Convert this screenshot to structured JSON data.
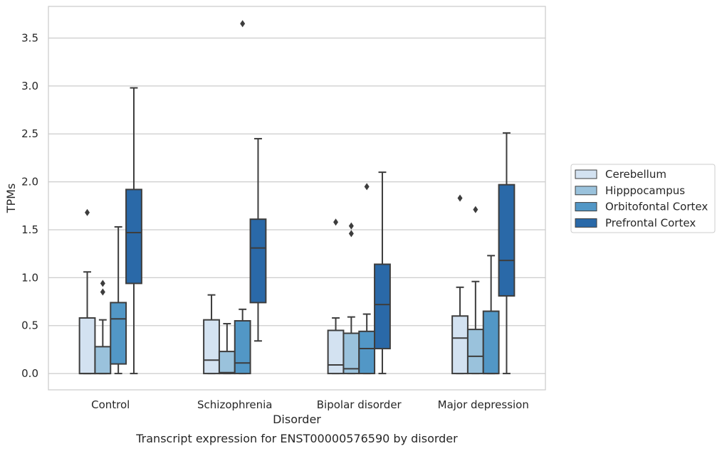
{
  "chart_data": {
    "type": "box",
    "caption": "Transcript expression for ENST00000576590 by disorder",
    "xlabel": "Disorder",
    "ylabel": "TPMs",
    "ylim": [
      -0.17,
      3.83
    ],
    "yticks": [
      "0.0",
      "0.5",
      "1.0",
      "1.5",
      "2.0",
      "2.5",
      "3.0",
      "3.5"
    ],
    "grid": "horizontal",
    "legend_position": "right",
    "categories": [
      "Control",
      "Schizophrenia",
      "Bipolar disorder",
      "Major depression"
    ],
    "series": [
      {
        "name": "Cerebellum",
        "color": "#d3e2f1",
        "boxes": [
          {
            "min": 0.0,
            "q1": 0.0,
            "median": 0.0,
            "q3": 0.58,
            "max": 1.06,
            "outliers": [
              1.68
            ]
          },
          {
            "min": 0.0,
            "q1": 0.0,
            "median": 0.14,
            "q3": 0.56,
            "max": 0.82,
            "outliers": []
          },
          {
            "min": 0.0,
            "q1": 0.0,
            "median": 0.09,
            "q3": 0.45,
            "max": 0.58,
            "outliers": [
              1.58
            ]
          },
          {
            "min": 0.0,
            "q1": 0.0,
            "median": 0.37,
            "q3": 0.6,
            "max": 0.9,
            "outliers": [
              1.83
            ]
          }
        ]
      },
      {
        "name": "Hipppocampus",
        "color": "#9ac2dc",
        "boxes": [
          {
            "min": 0.0,
            "q1": 0.0,
            "median": 0.0,
            "q3": 0.28,
            "max": 0.56,
            "outliers": [
              0.85,
              0.94
            ]
          },
          {
            "min": 0.0,
            "q1": 0.0,
            "median": 0.01,
            "q3": 0.23,
            "max": 0.52,
            "outliers": []
          },
          {
            "min": 0.0,
            "q1": 0.0,
            "median": 0.05,
            "q3": 0.42,
            "max": 0.59,
            "outliers": [
              1.46,
              1.54
            ]
          },
          {
            "min": 0.0,
            "q1": 0.0,
            "median": 0.18,
            "q3": 0.46,
            "max": 0.96,
            "outliers": [
              1.71
            ]
          }
        ]
      },
      {
        "name": "Orbitofontal Cortex",
        "color": "#5297c6",
        "boxes": [
          {
            "min": 0.0,
            "q1": 0.1,
            "median": 0.57,
            "q3": 0.74,
            "max": 1.53,
            "outliers": []
          },
          {
            "min": 0.0,
            "q1": 0.0,
            "median": 0.11,
            "q3": 0.55,
            "max": 0.67,
            "outliers": [
              3.65
            ]
          },
          {
            "min": 0.0,
            "q1": 0.0,
            "median": 0.26,
            "q3": 0.44,
            "max": 0.62,
            "outliers": [
              1.95
            ]
          },
          {
            "min": 0.0,
            "q1": 0.0,
            "median": 0.0,
            "q3": 0.65,
            "max": 1.23,
            "outliers": []
          }
        ]
      },
      {
        "name": "Prefrontal Cortex",
        "color": "#2a69a8",
        "boxes": [
          {
            "min": 0.0,
            "q1": 0.94,
            "median": 1.47,
            "q3": 1.92,
            "max": 2.98,
            "outliers": []
          },
          {
            "min": 0.34,
            "q1": 0.74,
            "median": 1.31,
            "q3": 1.61,
            "max": 2.45,
            "outliers": []
          },
          {
            "min": 0.0,
            "q1": 0.26,
            "median": 0.72,
            "q3": 1.14,
            "max": 2.1,
            "outliers": []
          },
          {
            "min": 0.0,
            "q1": 0.81,
            "median": 1.18,
            "q3": 1.97,
            "max": 2.51,
            "outliers": []
          }
        ]
      }
    ]
  }
}
